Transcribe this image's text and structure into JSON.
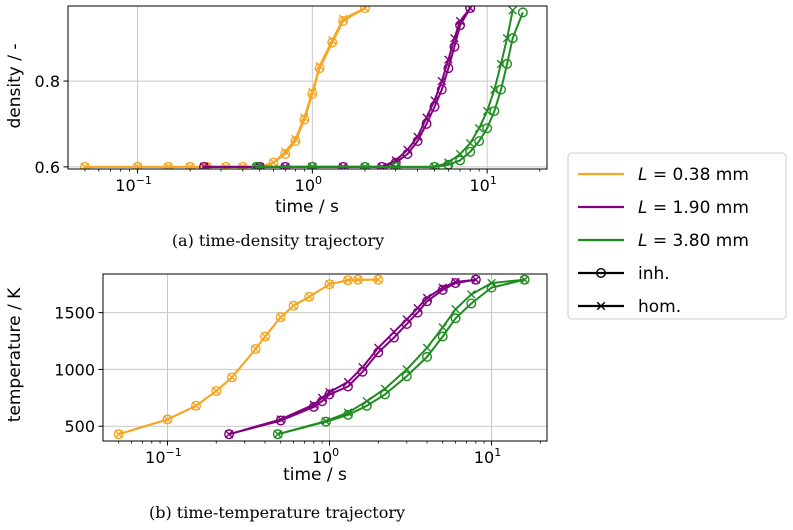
{
  "colors": {
    "orange": "#f5a623",
    "purple": "#800080",
    "green": "#1f8c1f",
    "grid": "#c8c8c8",
    "axis": "#000000"
  },
  "legend": {
    "placement": "right",
    "entries": [
      {
        "label": "L = 0.38 mm",
        "sym": "L",
        "rest": " =  0.38 mm",
        "color": "#f5a623",
        "marker": "line"
      },
      {
        "label": "L = 1.90 mm",
        "sym": "L",
        "rest": " =  1.90 mm",
        "color": "#800080",
        "marker": "line"
      },
      {
        "label": "L = 3.80 mm",
        "sym": "L",
        "rest": " =  3.80 mm",
        "color": "#1f8c1f",
        "marker": "line"
      },
      {
        "label": "inh.",
        "sym": "",
        "rest": "inh.",
        "color": "#000000",
        "marker": "circle"
      },
      {
        "label": "hom.",
        "sym": "",
        "rest": "hom.",
        "color": "#000000",
        "marker": "cross"
      }
    ]
  },
  "chart_data": [
    {
      "type": "line",
      "caption": "(a) time-density trajectory",
      "xlabel": "time / s",
      "ylabel": "density / -",
      "xscale": "log",
      "xlim": [
        0.04,
        22
      ],
      "ylim": [
        0.595,
        0.975
      ],
      "xticks": [
        0.1,
        1,
        10
      ],
      "xtick_labels": [
        "10−1",
        "10⁰",
        "10¹"
      ],
      "xtick_base": [
        "10",
        "10",
        "10"
      ],
      "xtick_exp": [
        "−1",
        "0",
        "1"
      ],
      "yticks": [
        0.6,
        0.8
      ],
      "ytick_labels": [
        "0.6",
        "0.8"
      ],
      "grid": true,
      "series": [
        {
          "name": "L = 0.38 mm, inh.",
          "color": "#f5a623",
          "marker": "circle",
          "x": [
            0.05,
            0.1,
            0.15,
            0.2,
            0.25,
            0.32,
            0.4,
            0.5,
            0.6,
            0.7,
            0.8,
            0.9,
            1.0,
            1.1,
            1.3,
            1.5,
            2.0
          ],
          "y": [
            0.6,
            0.6,
            0.6,
            0.6,
            0.6,
            0.6,
            0.6,
            0.6,
            0.61,
            0.63,
            0.66,
            0.71,
            0.77,
            0.83,
            0.89,
            0.94,
            0.97
          ]
        },
        {
          "name": "L = 0.38 mm, hom.",
          "color": "#f5a623",
          "marker": "cross",
          "x": [
            0.05,
            0.1,
            0.15,
            0.2,
            0.25,
            0.32,
            0.4,
            0.5,
            0.6,
            0.7,
            0.8,
            0.9,
            1.0,
            1.1,
            1.3,
            1.5,
            2.0
          ],
          "y": [
            0.6,
            0.6,
            0.6,
            0.6,
            0.6,
            0.6,
            0.6,
            0.6,
            0.61,
            0.635,
            0.665,
            0.715,
            0.775,
            0.835,
            0.895,
            0.945,
            0.97
          ]
        },
        {
          "name": "L = 1.90 mm, inh.",
          "color": "#800080",
          "marker": "circle",
          "x": [
            0.24,
            0.5,
            0.7,
            1.0,
            1.5,
            2.5,
            3.0,
            3.5,
            4.0,
            4.5,
            5.0,
            5.5,
            6.0,
            6.5,
            7.0,
            8.0
          ],
          "y": [
            0.6,
            0.6,
            0.6,
            0.6,
            0.6,
            0.6,
            0.61,
            0.63,
            0.66,
            0.7,
            0.74,
            0.78,
            0.83,
            0.88,
            0.93,
            0.97
          ]
        },
        {
          "name": "L = 1.90 mm, hom.",
          "color": "#800080",
          "marker": "cross",
          "x": [
            0.24,
            0.5,
            0.7,
            1.0,
            1.5,
            2.5,
            3.0,
            3.5,
            4.0,
            4.5,
            5.0,
            5.5,
            6.0,
            6.5,
            7.0,
            8.0
          ],
          "y": [
            0.6,
            0.6,
            0.6,
            0.6,
            0.6,
            0.6,
            0.615,
            0.64,
            0.67,
            0.715,
            0.755,
            0.8,
            0.85,
            0.9,
            0.94,
            0.97
          ]
        },
        {
          "name": "L = 3.80 mm, inh.",
          "color": "#1f8c1f",
          "marker": "circle",
          "x": [
            0.48,
            1.0,
            2.0,
            3.0,
            5.0,
            6.0,
            7.0,
            8.0,
            9.0,
            10.0,
            11.0,
            12.0,
            13.0,
            14.0,
            16.0
          ],
          "y": [
            0.6,
            0.6,
            0.6,
            0.6,
            0.6,
            0.605,
            0.615,
            0.635,
            0.66,
            0.69,
            0.73,
            0.78,
            0.84,
            0.9,
            0.96
          ]
        },
        {
          "name": "L = 3.80 mm, hom.",
          "color": "#1f8c1f",
          "marker": "cross",
          "x": [
            0.48,
            1.0,
            2.0,
            3.0,
            5.0,
            6.0,
            7.0,
            8.0,
            9.0,
            10.0,
            11.0,
            12.0,
            13.0,
            14.0
          ],
          "y": [
            0.6,
            0.6,
            0.6,
            0.6,
            0.6,
            0.61,
            0.63,
            0.655,
            0.69,
            0.73,
            0.78,
            0.84,
            0.9,
            0.965
          ]
        }
      ]
    },
    {
      "type": "line",
      "caption": "(b) time-temperature trajectory",
      "xlabel": "time / s",
      "ylabel": "temperature / K",
      "xscale": "log",
      "xlim": [
        0.04,
        22
      ],
      "ylim": [
        370,
        1840
      ],
      "xticks": [
        0.1,
        1,
        10
      ],
      "xtick_labels": [
        "10−1",
        "10⁰",
        "10¹"
      ],
      "xtick_base": [
        "10",
        "10",
        "10"
      ],
      "xtick_exp": [
        "−1",
        "0",
        "1"
      ],
      "yticks": [
        500,
        1000,
        1500
      ],
      "ytick_labels": [
        "500",
        "1000",
        "1500"
      ],
      "grid": true,
      "series": [
        {
          "name": "L = 0.38 mm, inh.",
          "color": "#f5a623",
          "marker": "circle",
          "x": [
            0.05,
            0.1,
            0.15,
            0.2,
            0.25,
            0.35,
            0.4,
            0.5,
            0.6,
            0.75,
            1.0,
            1.3,
            1.5,
            2.0
          ],
          "y": [
            430,
            560,
            680,
            810,
            930,
            1180,
            1290,
            1460,
            1560,
            1640,
            1750,
            1785,
            1790,
            1790
          ]
        },
        {
          "name": "L = 0.38 mm, hom.",
          "color": "#f5a623",
          "marker": "cross",
          "x": [
            0.05,
            0.1,
            0.15,
            0.2,
            0.25,
            0.35,
            0.4,
            0.5,
            0.6,
            0.75,
            1.0,
            1.3,
            1.5,
            2.0
          ],
          "y": [
            430,
            560,
            680,
            810,
            930,
            1180,
            1290,
            1460,
            1560,
            1640,
            1750,
            1785,
            1790,
            1790
          ]
        },
        {
          "name": "L = 1.90 mm, inh.",
          "color": "#800080",
          "marker": "circle",
          "x": [
            0.24,
            0.5,
            0.8,
            0.9,
            1.0,
            1.3,
            1.6,
            2.0,
            2.5,
            3.0,
            3.5,
            4.0,
            5.0,
            6.0,
            8.0
          ],
          "y": [
            430,
            550,
            670,
            720,
            780,
            850,
            980,
            1150,
            1280,
            1400,
            1500,
            1600,
            1700,
            1760,
            1790
          ]
        },
        {
          "name": "L = 1.90 mm, hom.",
          "color": "#800080",
          "marker": "cross",
          "x": [
            0.24,
            0.5,
            0.8,
            0.9,
            1.0,
            1.3,
            1.6,
            2.0,
            2.5,
            3.0,
            3.5,
            4.0,
            5.0,
            6.0,
            8.0
          ],
          "y": [
            430,
            560,
            690,
            750,
            800,
            890,
            1020,
            1190,
            1330,
            1440,
            1540,
            1630,
            1720,
            1770,
            1790
          ]
        },
        {
          "name": "L = 3.80 mm, inh.",
          "color": "#1f8c1f",
          "marker": "circle",
          "x": [
            0.48,
            0.95,
            1.3,
            1.7,
            2.2,
            3.0,
            4.0,
            5.0,
            6.0,
            7.5,
            10.0,
            16.0
          ],
          "y": [
            430,
            540,
            600,
            680,
            780,
            940,
            1110,
            1290,
            1450,
            1580,
            1720,
            1790
          ]
        },
        {
          "name": "L = 3.80 mm, hom.",
          "color": "#1f8c1f",
          "marker": "cross",
          "x": [
            0.48,
            0.95,
            1.3,
            1.7,
            2.2,
            3.0,
            4.0,
            5.0,
            6.0,
            7.5,
            10.0,
            16.0
          ],
          "y": [
            430,
            545,
            620,
            720,
            830,
            1000,
            1190,
            1370,
            1530,
            1660,
            1760,
            1790
          ]
        }
      ]
    }
  ]
}
